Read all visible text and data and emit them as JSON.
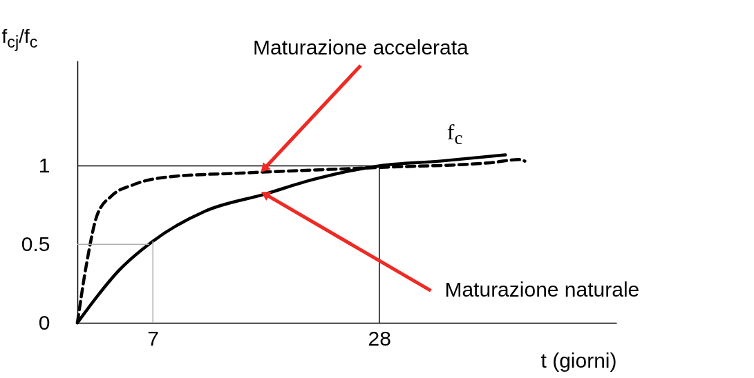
{
  "chart_data": {
    "type": "line",
    "xlabel": "t (giorni)",
    "ylabel": "f$_{cj}$/f$_{c}$",
    "xlim": [
      0,
      50
    ],
    "ylim": [
      0,
      1.67
    ],
    "xticks": [
      7,
      28
    ],
    "yticks": [
      0,
      0.5,
      1
    ],
    "series": [
      {
        "name": "f$_{c}$",
        "color": "#000000",
        "line_style": "solid",
        "x": [
          0,
          1.85,
          3.8,
          7,
          11.8,
          17.4,
          21.7,
          28,
          33.6,
          39.7
        ],
        "values": [
          0,
          0.17,
          0.33,
          0.52,
          0.71,
          0.82,
          0.91,
          1.0,
          1.03,
          1.07
        ]
      },
      {
        "color": "#000000",
        "line_style": "dashed",
        "x": [
          0,
          0.86,
          1.85,
          3.2,
          5.2,
          8.5,
          15.5,
          28,
          38.3,
          41,
          41.5
        ],
        "values": [
          0,
          0.38,
          0.69,
          0.81,
          0.88,
          0.93,
          0.955,
          0.99,
          1.02,
          1.04,
          1.03
        ]
      }
    ],
    "ref_lines": [
      {
        "axis": "y",
        "value": 1,
        "color": "#000000"
      },
      {
        "axis": "y",
        "value": 0.5,
        "color": "#b0b0b0"
      },
      {
        "axis": "x",
        "value": 28,
        "color": "#000000"
      },
      {
        "axis": "x",
        "value": 7,
        "color": "#b0b0b0"
      }
    ],
    "annotations": [
      {
        "text": "Maturazione accelerata",
        "x": 17.3,
        "y": 0.98
      },
      {
        "text": "Maturazione naturale",
        "x": 17.4,
        "y": 0.82
      }
    ],
    "grid": false,
    "marker": "none"
  }
}
